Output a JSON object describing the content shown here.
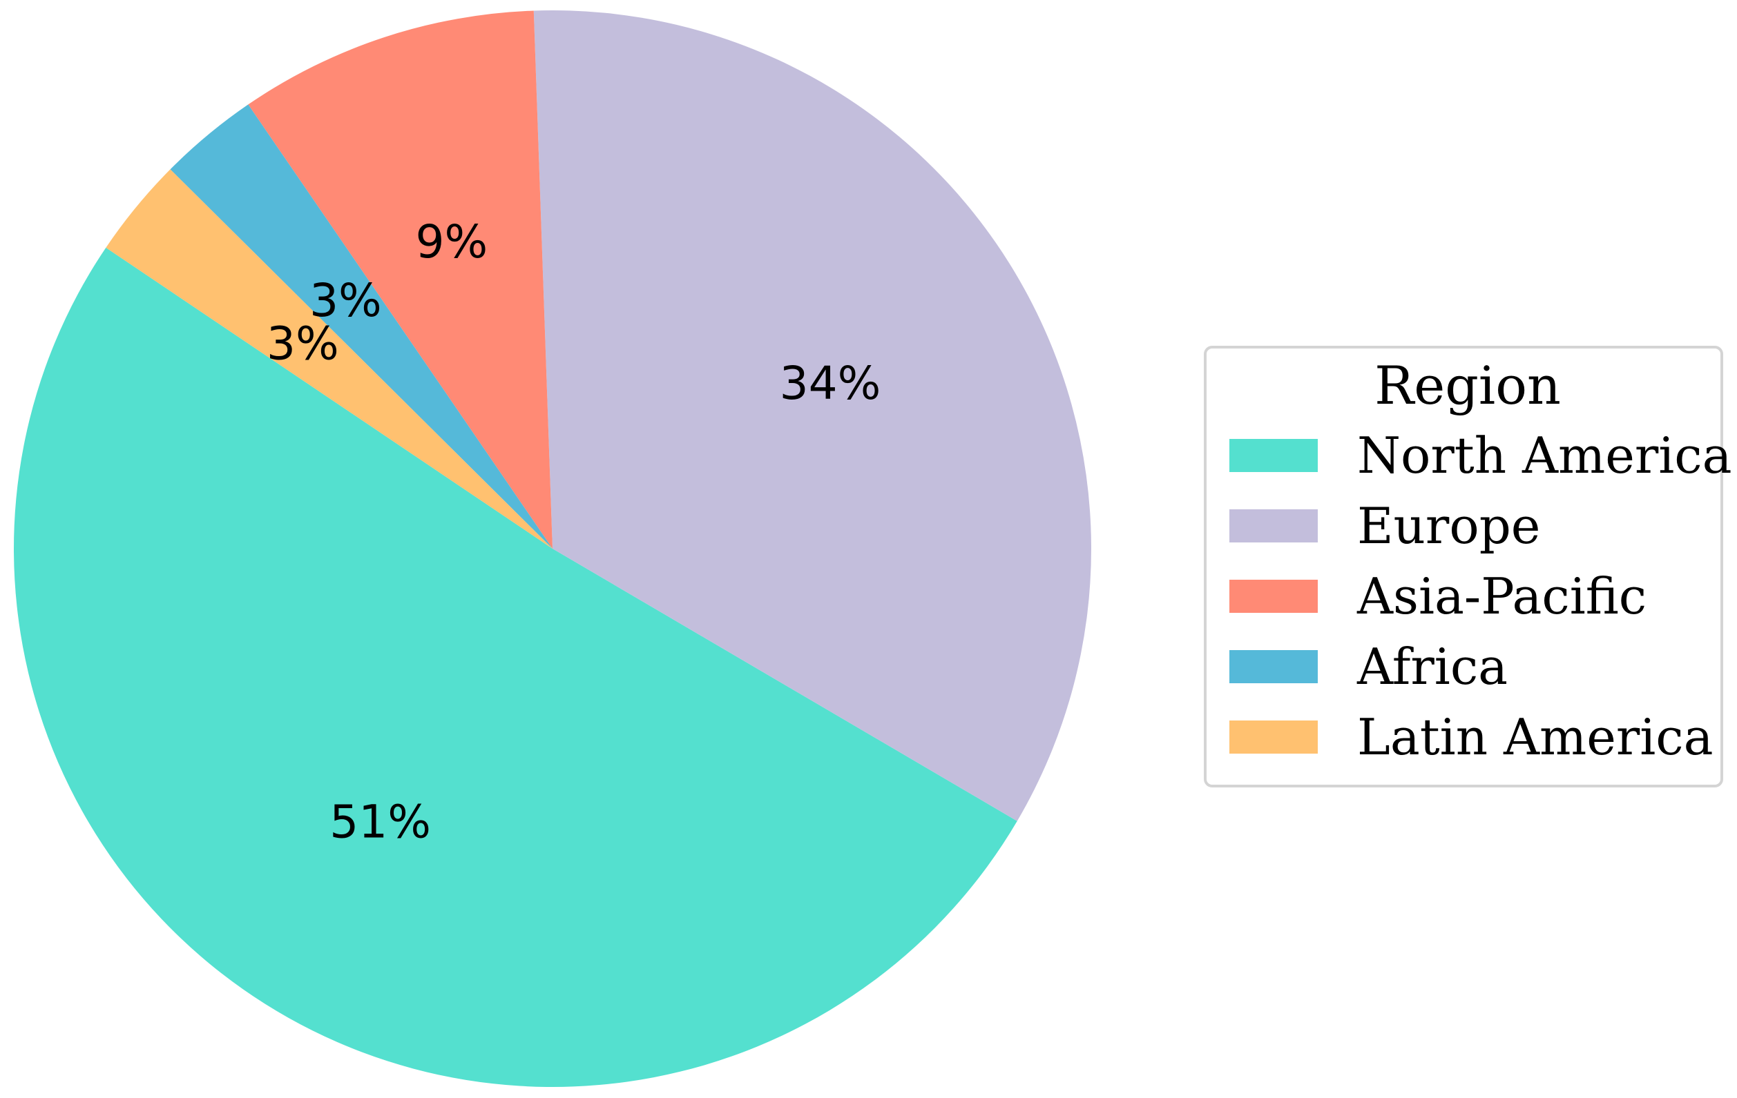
{
  "chart_data": {
    "type": "pie",
    "legend_title": "Region",
    "legend_position": "center-right",
    "start_angle_deg": 146,
    "direction": "counterclockwise",
    "slices": [
      {
        "name": "North America",
        "value": 51,
        "label": "51%",
        "color": "#54E0CF"
      },
      {
        "name": "Europe",
        "value": 34,
        "label": "34%",
        "color": "#C3BEDC"
      },
      {
        "name": "Asia-Pacific",
        "value": 9,
        "label": "9%",
        "color": "#FF8A75"
      },
      {
        "name": "Africa",
        "value": 3,
        "label": "3%",
        "color": "#55B9D9"
      },
      {
        "name": "Latin America",
        "value": 3,
        "label": "3%",
        "color": "#FFC170"
      }
    ]
  }
}
